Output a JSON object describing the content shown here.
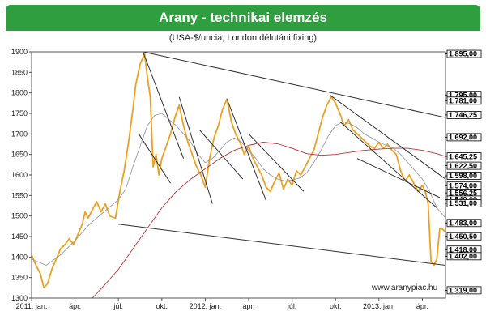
{
  "title": "Arany - technikai elemzés",
  "subtitle": "(USA-$/uncia, London délutáni fixing)",
  "watermark": "www.aranypiac.hu",
  "colors": {
    "title_bg": "#2e9e3e",
    "price": "#f0a020",
    "ma_short": "#9a9a9a",
    "ma_long": "#c03030",
    "resistance": "#a02828",
    "support": "#3aa8a8",
    "trend": "#303030"
  },
  "chart_data": {
    "type": "line",
    "ylim": [
      1300,
      1900
    ],
    "y_ticks": [
      1300,
      1350,
      1400,
      1450,
      1500,
      1550,
      1600,
      1650,
      1700,
      1750,
      1800,
      1850,
      1900
    ],
    "x_ticks": [
      {
        "label": "2011. jan.",
        "t": 0
      },
      {
        "label": "ápr.",
        "t": 3
      },
      {
        "label": "júl.",
        "t": 6
      },
      {
        "label": "okt.",
        "t": 9
      },
      {
        "label": "2012. jan.",
        "t": 12
      },
      {
        "label": "ápr.",
        "t": 15
      },
      {
        "label": "júl.",
        "t": 18
      },
      {
        "label": "okt.",
        "t": 21
      },
      {
        "label": "2013. jan.",
        "t": 24
      },
      {
        "label": "ápr.",
        "t": 27
      }
    ],
    "xlim": [
      0,
      28.6
    ],
    "levels": [
      {
        "value": 1895,
        "label": "1.895,00",
        "kind": "resistance"
      },
      {
        "value": 1795,
        "label": "1.795,00",
        "kind": "resistance"
      },
      {
        "value": 1781,
        "label": "1.781,00",
        "kind": "resistance"
      },
      {
        "value": 1746.25,
        "label": "1.746,25",
        "kind": "resistance"
      },
      {
        "value": 1692,
        "label": "1.692,00",
        "kind": "resistance"
      },
      {
        "value": 1645.25,
        "label": "1.645,25",
        "kind": "resistance"
      },
      {
        "value": 1622.5,
        "label": "1.622,50",
        "kind": "resistance"
      },
      {
        "value": 1598,
        "label": "1.598,00",
        "kind": "resistance"
      },
      {
        "value": 1574,
        "label": "1.574,00",
        "kind": "resistance"
      },
      {
        "value": 1556.25,
        "label": "1.556,25",
        "kind": "resistance"
      },
      {
        "value": 1540,
        "label": "1.540,00",
        "kind": "resistance"
      },
      {
        "value": 1531,
        "label": "1.531,00",
        "kind": "resistance"
      },
      {
        "value": 1483,
        "label": "1.483,00",
        "kind": "support"
      },
      {
        "value": 1450.5,
        "label": "1.450,50",
        "kind": "support"
      },
      {
        "value": 1418,
        "label": "1.418,00",
        "kind": "support"
      },
      {
        "value": 1402,
        "label": "1.402,00",
        "kind": "support"
      },
      {
        "value": 1319,
        "label": "1.319,00",
        "kind": "support"
      }
    ],
    "series": [
      {
        "style": "price",
        "points": [
          [
            0,
            1405
          ],
          [
            0.3,
            1380
          ],
          [
            0.6,
            1360
          ],
          [
            0.85,
            1325
          ],
          [
            1.1,
            1335
          ],
          [
            1.4,
            1370
          ],
          [
            1.7,
            1395
          ],
          [
            2.0,
            1420
          ],
          [
            2.3,
            1430
          ],
          [
            2.6,
            1445
          ],
          [
            2.9,
            1430
          ],
          [
            3.2,
            1455
          ],
          [
            3.5,
            1480
          ],
          [
            3.7,
            1510
          ],
          [
            3.9,
            1495
          ],
          [
            4.2,
            1515
          ],
          [
            4.5,
            1535
          ],
          [
            4.8,
            1510
          ],
          [
            5.1,
            1530
          ],
          [
            5.4,
            1500
          ],
          [
            5.8,
            1495
          ],
          [
            6.1,
            1560
          ],
          [
            6.4,
            1610
          ],
          [
            6.7,
            1680
          ],
          [
            7.0,
            1760
          ],
          [
            7.2,
            1820
          ],
          [
            7.5,
            1870
          ],
          [
            7.8,
            1895
          ],
          [
            8.0,
            1840
          ],
          [
            8.2,
            1790
          ],
          [
            8.4,
            1620
          ],
          [
            8.6,
            1650
          ],
          [
            8.8,
            1600
          ],
          [
            9.0,
            1640
          ],
          [
            9.3,
            1670
          ],
          [
            9.6,
            1700
          ],
          [
            9.9,
            1740
          ],
          [
            10.2,
            1770
          ],
          [
            10.5,
            1720
          ],
          [
            10.8,
            1680
          ],
          [
            11.1,
            1650
          ],
          [
            11.4,
            1620
          ],
          [
            11.7,
            1600
          ],
          [
            12.0,
            1570
          ],
          [
            12.3,
            1640
          ],
          [
            12.6,
            1690
          ],
          [
            12.9,
            1720
          ],
          [
            13.2,
            1760
          ],
          [
            13.5,
            1785
          ],
          [
            13.8,
            1730
          ],
          [
            14.1,
            1700
          ],
          [
            14.4,
            1680
          ],
          [
            14.7,
            1650
          ],
          [
            15.0,
            1670
          ],
          [
            15.3,
            1640
          ],
          [
            15.6,
            1620
          ],
          [
            15.9,
            1600
          ],
          [
            16.2,
            1570
          ],
          [
            16.5,
            1560
          ],
          [
            16.8,
            1585
          ],
          [
            17.1,
            1605
          ],
          [
            17.4,
            1565
          ],
          [
            17.7,
            1590
          ],
          [
            18.0,
            1575
          ],
          [
            18.3,
            1610
          ],
          [
            18.6,
            1600
          ],
          [
            18.9,
            1620
          ],
          [
            19.2,
            1640
          ],
          [
            19.5,
            1660
          ],
          [
            19.8,
            1700
          ],
          [
            20.1,
            1740
          ],
          [
            20.4,
            1770
          ],
          [
            20.7,
            1790
          ],
          [
            21.0,
            1775
          ],
          [
            21.3,
            1750
          ],
          [
            21.6,
            1720
          ],
          [
            21.9,
            1735
          ],
          [
            22.2,
            1710
          ],
          [
            22.5,
            1700
          ],
          [
            22.8,
            1690
          ],
          [
            23.1,
            1680
          ],
          [
            23.4,
            1670
          ],
          [
            23.7,
            1665
          ],
          [
            24.0,
            1680
          ],
          [
            24.3,
            1665
          ],
          [
            24.6,
            1675
          ],
          [
            24.9,
            1660
          ],
          [
            25.2,
            1650
          ],
          [
            25.5,
            1610
          ],
          [
            25.8,
            1585
          ],
          [
            26.1,
            1600
          ],
          [
            26.4,
            1580
          ],
          [
            26.7,
            1560
          ],
          [
            27.0,
            1575
          ],
          [
            27.2,
            1560
          ],
          [
            27.4,
            1530
          ],
          [
            27.6,
            1390
          ],
          [
            27.8,
            1380
          ],
          [
            28.0,
            1395
          ],
          [
            28.2,
            1470
          ],
          [
            28.4,
            1468
          ],
          [
            28.6,
            1460
          ]
        ]
      },
      {
        "style": "ma_short",
        "points": [
          [
            0,
            1395
          ],
          [
            1,
            1380
          ],
          [
            2,
            1405
          ],
          [
            3,
            1440
          ],
          [
            4,
            1480
          ],
          [
            5,
            1510
          ],
          [
            6,
            1540
          ],
          [
            6.5,
            1565
          ],
          [
            7,
            1620
          ],
          [
            7.5,
            1670
          ],
          [
            8,
            1720
          ],
          [
            8.5,
            1745
          ],
          [
            9,
            1750
          ],
          [
            9.5,
            1735
          ],
          [
            10,
            1720
          ],
          [
            10.5,
            1700
          ],
          [
            11,
            1680
          ],
          [
            11.5,
            1650
          ],
          [
            12,
            1630
          ],
          [
            12.5,
            1640
          ],
          [
            13,
            1660
          ],
          [
            13.5,
            1680
          ],
          [
            14,
            1690
          ],
          [
            14.5,
            1680
          ],
          [
            15,
            1660
          ],
          [
            15.5,
            1640
          ],
          [
            16,
            1615
          ],
          [
            16.5,
            1600
          ],
          [
            17,
            1590
          ],
          [
            17.5,
            1585
          ],
          [
            18,
            1588
          ],
          [
            18.5,
            1592
          ],
          [
            19,
            1605
          ],
          [
            19.5,
            1630
          ],
          [
            20,
            1660
          ],
          [
            20.5,
            1695
          ],
          [
            21,
            1720
          ],
          [
            21.5,
            1730
          ],
          [
            22,
            1725
          ],
          [
            22.5,
            1715
          ],
          [
            23,
            1700
          ],
          [
            23.5,
            1690
          ],
          [
            24,
            1680
          ],
          [
            24.5,
            1672
          ],
          [
            25,
            1665
          ],
          [
            25.5,
            1650
          ],
          [
            26,
            1630
          ],
          [
            26.5,
            1610
          ],
          [
            27,
            1590
          ],
          [
            27.5,
            1560
          ],
          [
            28,
            1520
          ],
          [
            28.6,
            1495
          ]
        ]
      },
      {
        "style": "ma_long",
        "points": [
          [
            4.2,
            1300
          ],
          [
            5,
            1330
          ],
          [
            6,
            1370
          ],
          [
            7,
            1420
          ],
          [
            8,
            1470
          ],
          [
            9,
            1520
          ],
          [
            10,
            1560
          ],
          [
            11,
            1590
          ],
          [
            12,
            1615
          ],
          [
            13,
            1640
          ],
          [
            14,
            1660
          ],
          [
            15,
            1672
          ],
          [
            16,
            1680
          ],
          [
            17,
            1676
          ],
          [
            18,
            1665
          ],
          [
            19,
            1652
          ],
          [
            20,
            1648
          ],
          [
            21,
            1650
          ],
          [
            22,
            1655
          ],
          [
            23,
            1660
          ],
          [
            24,
            1663
          ],
          [
            25,
            1665
          ],
          [
            26,
            1665
          ],
          [
            27,
            1660
          ],
          [
            28,
            1652
          ],
          [
            28.6,
            1645
          ]
        ]
      }
    ],
    "trend_lines": [
      [
        [
          7.7,
          1900
        ],
        [
          28.6,
          1740
        ]
      ],
      [
        [
          6,
          1480
        ],
        [
          28.6,
          1380
        ]
      ],
      [
        [
          7.7,
          1900
        ],
        [
          10.5,
          1640
        ]
      ],
      [
        [
          7.4,
          1700
        ],
        [
          9.6,
          1580
        ]
      ],
      [
        [
          10.2,
          1790
        ],
        [
          12.5,
          1530
        ]
      ],
      [
        [
          11.6,
          1710
        ],
        [
          14.6,
          1590
        ]
      ],
      [
        [
          13.5,
          1785
        ],
        [
          16.2,
          1538
        ]
      ],
      [
        [
          15.0,
          1700
        ],
        [
          18.8,
          1560
        ]
      ],
      [
        [
          20.6,
          1795
        ],
        [
          28.6,
          1590
        ]
      ],
      [
        [
          21.3,
          1730
        ],
        [
          28.0,
          1520
        ]
      ],
      [
        [
          22.5,
          1640
        ],
        [
          28.2,
          1545
        ]
      ]
    ]
  }
}
